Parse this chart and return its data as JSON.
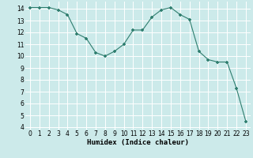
{
  "x": [
    0,
    1,
    2,
    3,
    4,
    5,
    6,
    7,
    8,
    9,
    10,
    11,
    12,
    13,
    14,
    15,
    16,
    17,
    18,
    19,
    20,
    21,
    22,
    23
  ],
  "y": [
    14.1,
    14.1,
    14.1,
    13.9,
    13.5,
    11.9,
    11.5,
    10.3,
    10.0,
    10.4,
    11.0,
    12.2,
    12.2,
    13.3,
    13.9,
    14.1,
    13.5,
    13.1,
    10.4,
    9.7,
    9.5,
    9.5,
    7.3,
    4.5
  ],
  "xlabel": "Humidex (Indice chaleur)",
  "xlim": [
    -0.5,
    23.5
  ],
  "ylim": [
    3.8,
    14.6
  ],
  "yticks": [
    4,
    5,
    6,
    7,
    8,
    9,
    10,
    11,
    12,
    13,
    14
  ],
  "xticks": [
    0,
    1,
    2,
    3,
    4,
    5,
    6,
    7,
    8,
    9,
    10,
    11,
    12,
    13,
    14,
    15,
    16,
    17,
    18,
    19,
    20,
    21,
    22,
    23
  ],
  "line_color": "#2e7d6e",
  "marker_color": "#2e7d6e",
  "bg_color": "#cceaea",
  "grid_color": "#ffffff",
  "label_fontsize": 6.5,
  "tick_fontsize": 5.5
}
